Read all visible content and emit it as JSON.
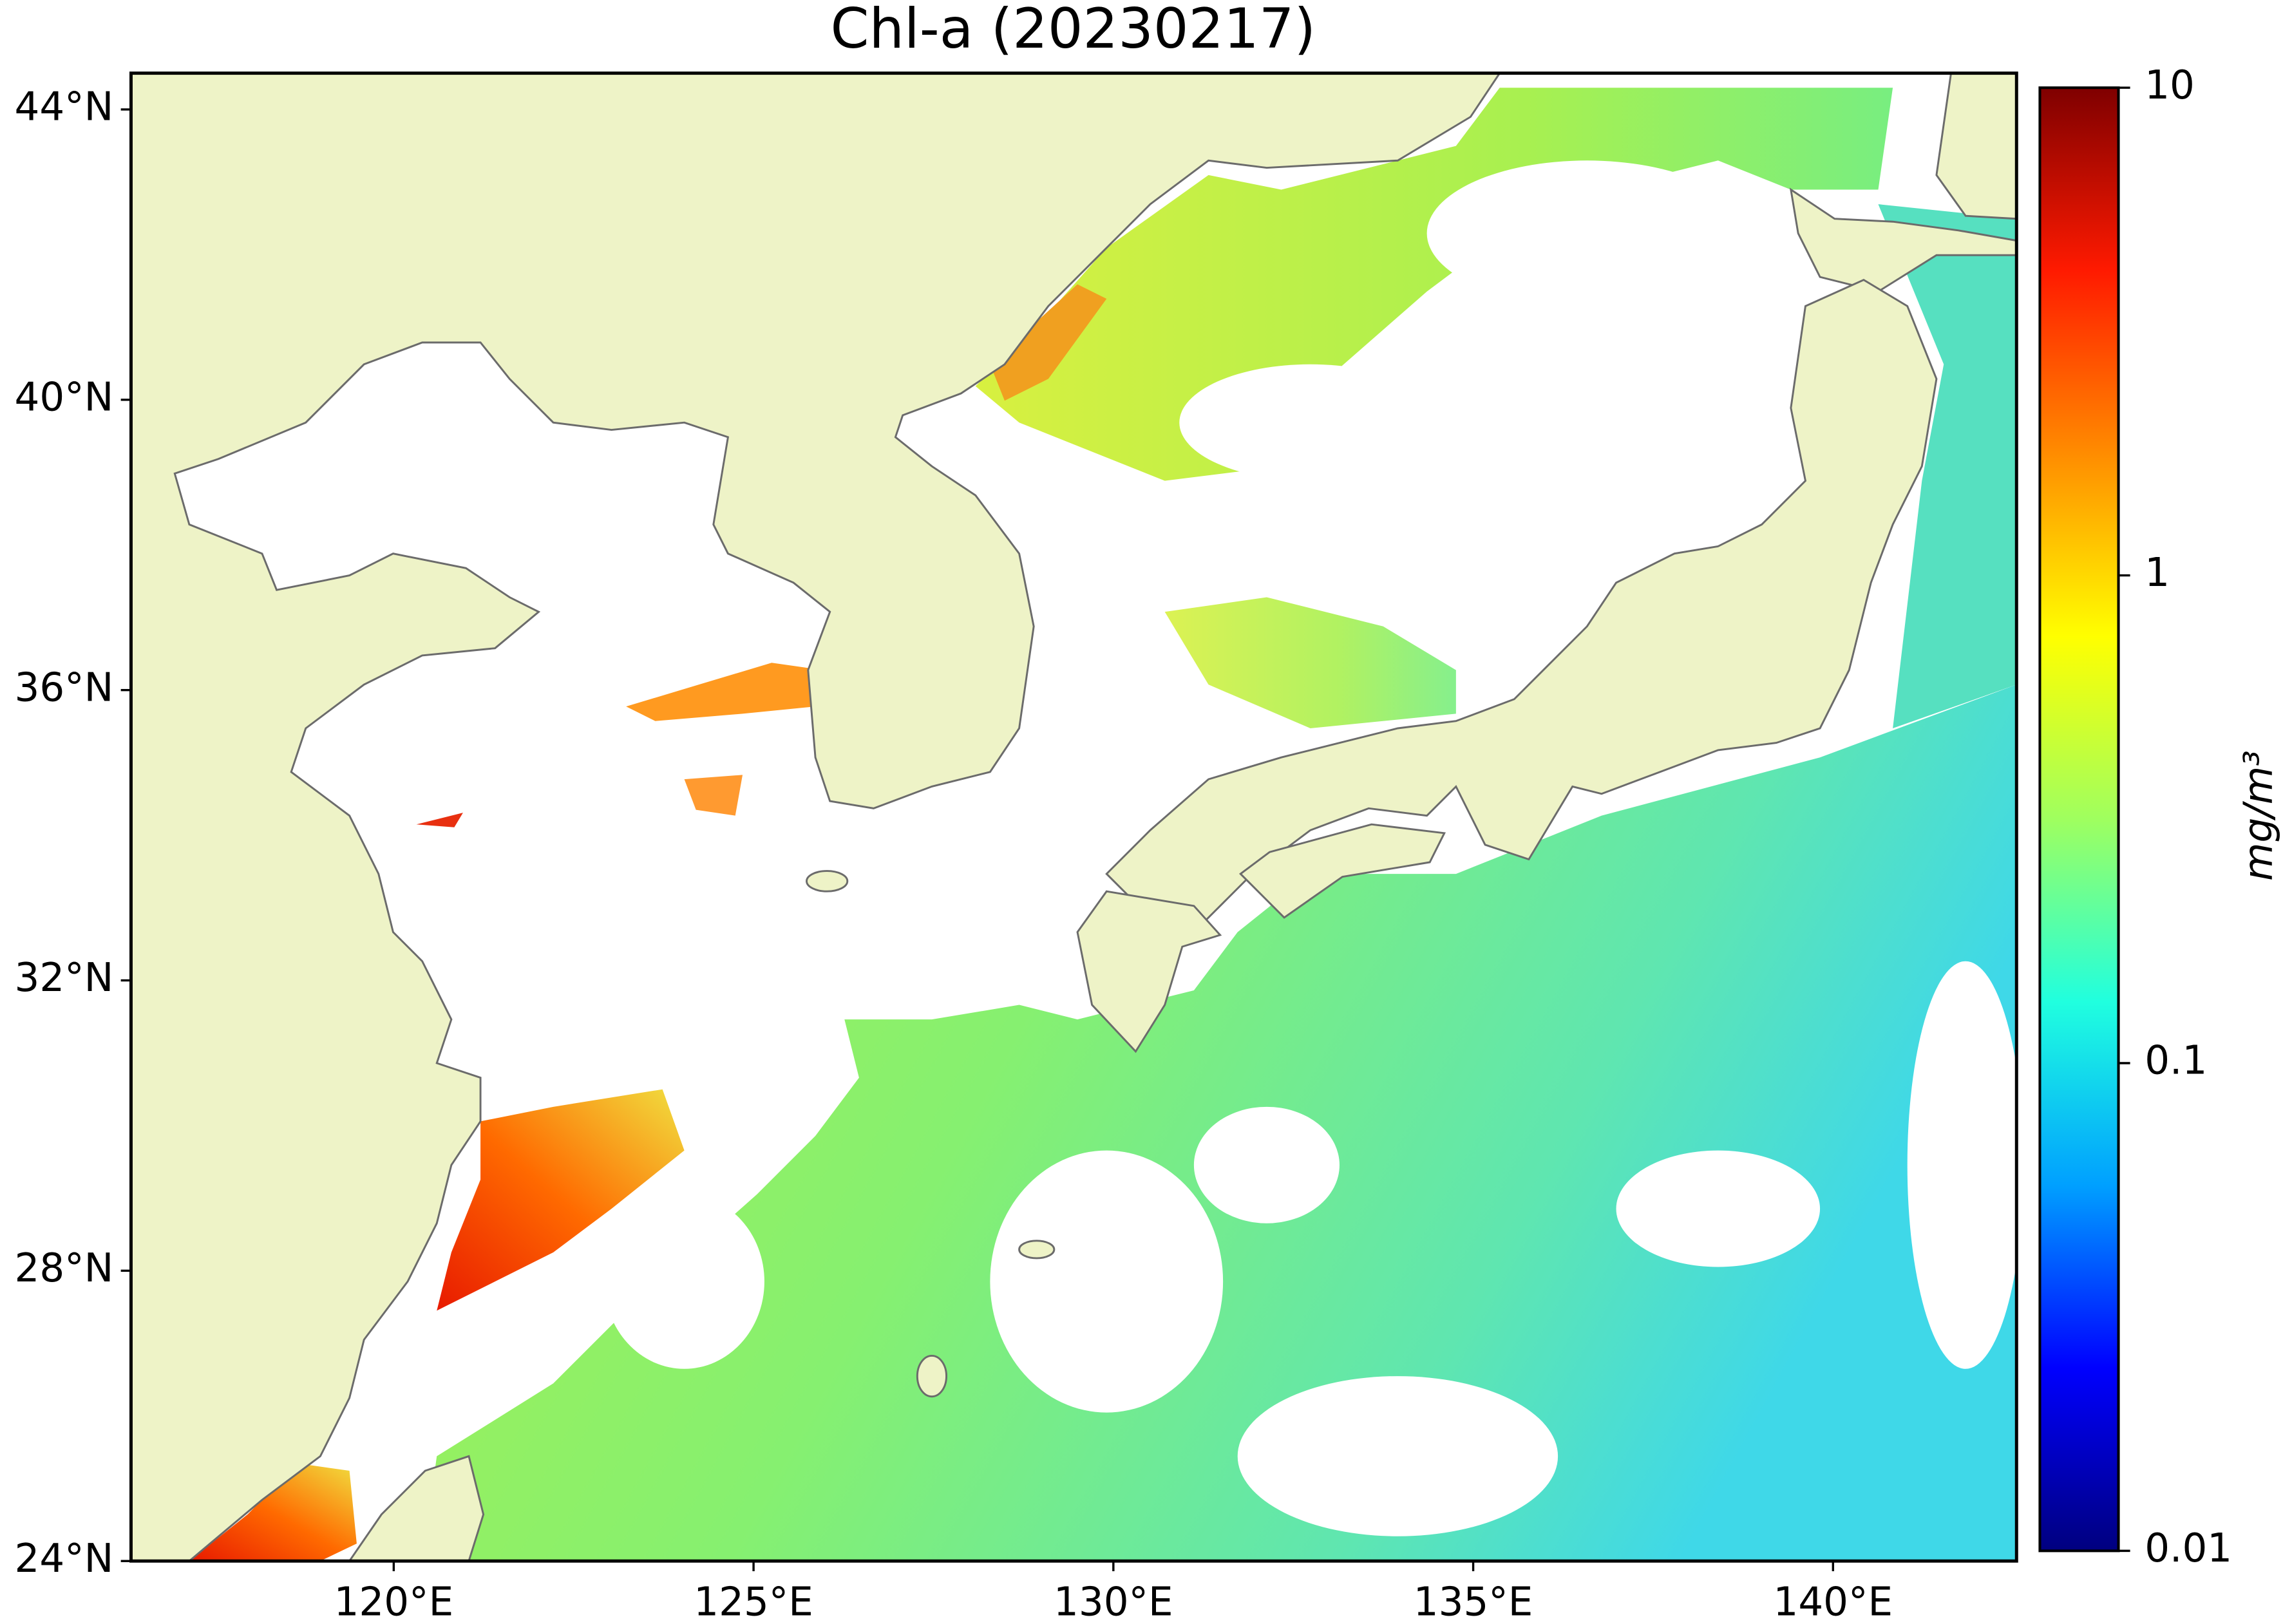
{
  "chart_data": {
    "type": "map",
    "title": "Chl-a (20230217)",
    "xlim": [
      116.35,
      142.55
    ],
    "ylim": [
      24,
      44.5
    ],
    "xticks": [
      {
        "value": 120,
        "label": "120°E"
      },
      {
        "value": 125,
        "label": "125°E"
      },
      {
        "value": 130,
        "label": "130°E"
      },
      {
        "value": 135,
        "label": "135°E"
      },
      {
        "value": 140,
        "label": "140°E"
      }
    ],
    "yticks": [
      {
        "value": 24,
        "label": "24°N"
      },
      {
        "value": 28,
        "label": "28°N"
      },
      {
        "value": 32,
        "label": "32°N"
      },
      {
        "value": 36,
        "label": "36°N"
      },
      {
        "value": 40,
        "label": "40°N"
      },
      {
        "value": 44,
        "label": "44°N"
      }
    ],
    "colorbar": {
      "label": "mg/m³",
      "log_scale": true,
      "lim": [
        0.01,
        10
      ],
      "ticks": [
        0.01,
        0.1,
        1,
        10
      ],
      "colors": [
        "#00007f",
        "#0000ff",
        "#00a0ff",
        "#20ffdf",
        "#9fff5f",
        "#ffff00",
        "#ff8c00",
        "#ff1a00",
        "#7f0000"
      ]
    }
  }
}
